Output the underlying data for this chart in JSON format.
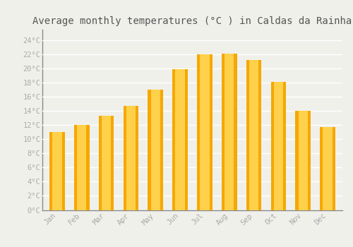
{
  "months": [
    "Jan",
    "Feb",
    "Mar",
    "Apr",
    "May",
    "Jun",
    "Jul",
    "Aug",
    "Sep",
    "Oct",
    "Nov",
    "Dec"
  ],
  "values": [
    11.0,
    12.0,
    13.3,
    14.7,
    17.0,
    19.9,
    22.0,
    22.1,
    21.2,
    18.1,
    14.0,
    11.7
  ],
  "bar_color_center": "#FFD04A",
  "bar_color_edge": "#F5A800",
  "background_color": "#F0F0EB",
  "grid_color": "#FFFFFF",
  "title": "Average monthly temperatures (°C ) in Caldas da Rainha",
  "title_fontsize": 10,
  "tick_label_color": "#AAAAAA",
  "title_color": "#555555",
  "ytick_labels": [
    "0°C",
    "2°C",
    "4°C",
    "6°C",
    "8°C",
    "10°C",
    "12°C",
    "14°C",
    "16°C",
    "18°C",
    "20°C",
    "22°C",
    "24°C"
  ],
  "ytick_values": [
    0,
    2,
    4,
    6,
    8,
    10,
    12,
    14,
    16,
    18,
    20,
    22,
    24
  ],
  "ylim": [
    0,
    25.5
  ],
  "font_family": "monospace",
  "spine_color": "#888888"
}
